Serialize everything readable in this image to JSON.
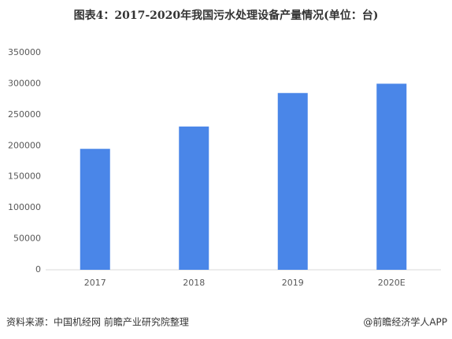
{
  "chart_data": {
    "type": "bar",
    "title": "图表4：2017-2020年我国污水处理设备产量情况(单位：台)",
    "categories": [
      "2017",
      "2018",
      "2019",
      "2020E"
    ],
    "values": [
      195000,
      231000,
      285000,
      300000
    ],
    "color": "#4a86e8",
    "ylim": [
      0,
      350000
    ],
    "yticks": [
      0,
      50000,
      100000,
      150000,
      200000,
      250000,
      300000,
      350000
    ],
    "grid": false
  },
  "footer": {
    "source": "资料来源：中国机经网 前瞻产业研究院整理",
    "brand": "@前瞻经济学人APP"
  }
}
